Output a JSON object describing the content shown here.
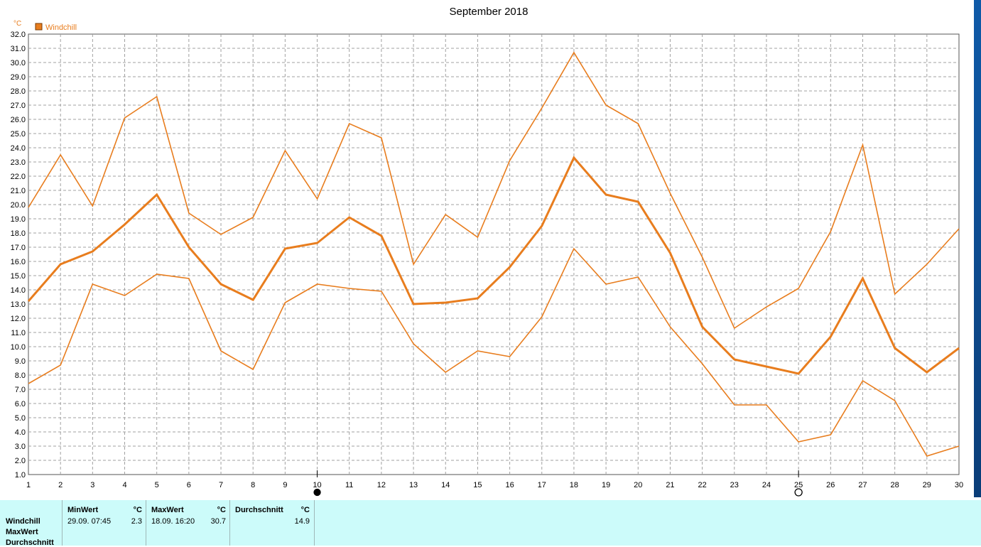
{
  "chart_data": {
    "type": "line",
    "title": "September 2018",
    "y_unit": "°C",
    "legend": [
      {
        "name": "Windchill",
        "color": "#e87d1e"
      }
    ],
    "legend_placement": "top-left",
    "ylim": [
      1.0,
      32.0
    ],
    "xlim": [
      1,
      30
    ],
    "grid": true,
    "x": [
      1,
      2,
      3,
      4,
      5,
      6,
      7,
      8,
      9,
      10,
      11,
      12,
      13,
      14,
      15,
      16,
      17,
      18,
      19,
      20,
      21,
      22,
      23,
      24,
      25,
      26,
      27,
      28,
      29,
      30
    ],
    "x_ticks": [
      "1",
      "2",
      "3",
      "4",
      "5",
      "6",
      "7",
      "8",
      "9",
      "10",
      "11",
      "12",
      "13",
      "14",
      "15",
      "16",
      "17",
      "18",
      "19",
      "20",
      "21",
      "22",
      "23",
      "24",
      "25",
      "26",
      "27",
      "28",
      "29",
      "30"
    ],
    "y_ticks": [
      "1.0",
      "2.0",
      "3.0",
      "4.0",
      "5.0",
      "6.0",
      "7.0",
      "8.0",
      "9.0",
      "10.0",
      "11.0",
      "12.0",
      "13.0",
      "14.0",
      "15.0",
      "16.0",
      "17.0",
      "18.0",
      "19.0",
      "20.0",
      "21.0",
      "22.0",
      "23.0",
      "24.0",
      "25.0",
      "26.0",
      "27.0",
      "28.0",
      "29.0",
      "30.0",
      "31.0",
      "32.0"
    ],
    "series": [
      {
        "role": "max",
        "color": "#e87d1e",
        "width": 1.6,
        "values": [
          19.8,
          23.5,
          19.9,
          26.1,
          27.6,
          19.4,
          17.9,
          19.1,
          23.8,
          20.4,
          25.7,
          24.7,
          15.8,
          19.3,
          17.7,
          23.1,
          26.8,
          30.7,
          27.0,
          25.7,
          20.8,
          16.3,
          11.3,
          12.8,
          14.1,
          18.1,
          24.2,
          13.7,
          15.8,
          18.3
        ]
      },
      {
        "role": "average",
        "color": "#e87d1e",
        "width": 3,
        "values": [
          13.2,
          15.8,
          16.7,
          18.6,
          20.7,
          17.0,
          14.4,
          13.3,
          16.9,
          17.3,
          19.1,
          17.8,
          13.0,
          13.1,
          13.4,
          15.6,
          18.5,
          23.3,
          20.7,
          20.2,
          16.6,
          11.4,
          9.1,
          8.6,
          8.1,
          10.7,
          14.8,
          9.9,
          8.2,
          9.9
        ]
      },
      {
        "role": "min",
        "color": "#e87d1e",
        "width": 1.6,
        "values": [
          7.4,
          8.7,
          14.4,
          13.6,
          15.1,
          14.8,
          9.7,
          8.4,
          13.1,
          14.4,
          14.1,
          13.9,
          10.2,
          8.2,
          9.7,
          9.3,
          12.1,
          16.9,
          14.4,
          14.9,
          11.4,
          8.8,
          5.9,
          5.9,
          3.3,
          3.8,
          7.6,
          6.2,
          2.3,
          3.0
        ]
      }
    ],
    "markers": [
      {
        "x": 10,
        "shape": "filled-circle"
      },
      {
        "x": 25,
        "shape": "hollow-circle"
      }
    ]
  },
  "stats": {
    "row_labels": [
      "Windchill",
      "MaxWert",
      "Durchschnitt"
    ],
    "columns": [
      {
        "header": "MinWert",
        "unit": "°C",
        "date": "29.09.  07:45",
        "value": "2.3"
      },
      {
        "header": "MaxWert",
        "unit": "°C",
        "date": "18.09.  16:20",
        "value": "30.7"
      },
      {
        "header": "Durchschnitt",
        "unit": "°C",
        "date": "",
        "value": "14.9"
      }
    ]
  }
}
